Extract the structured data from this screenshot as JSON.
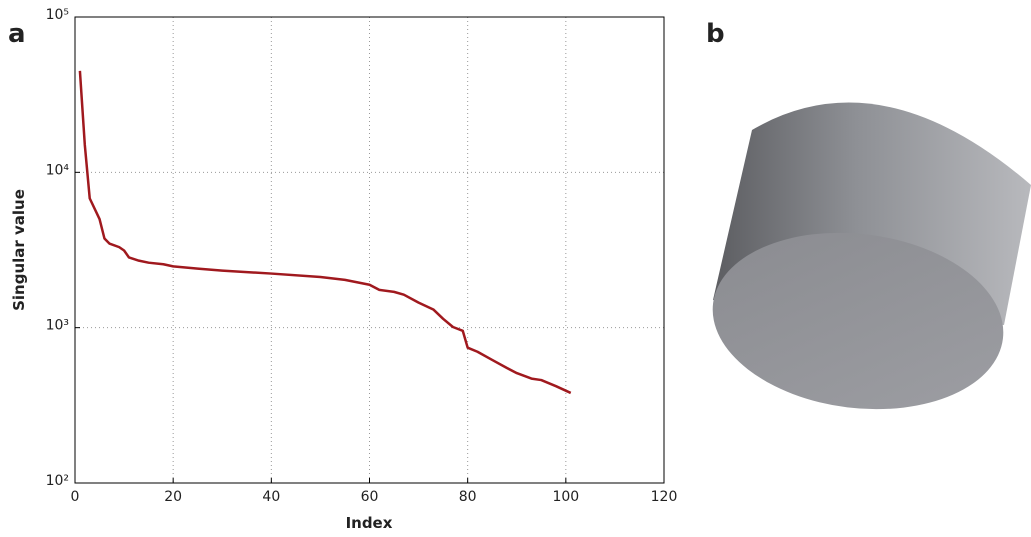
{
  "panel_labels": [
    "a",
    "b"
  ],
  "chart_data": {
    "type": "line",
    "xlabel": "Index",
    "ylabel": "Singular value",
    "log_y": true,
    "grid": true,
    "x": [
      1,
      2,
      3,
      5,
      6,
      7,
      9,
      10,
      11,
      13,
      15,
      18,
      20,
      25,
      30,
      40,
      50,
      55,
      60,
      62,
      65,
      67,
      70,
      73,
      75,
      77,
      79,
      80,
      82,
      85,
      88,
      90,
      93,
      95,
      98,
      101
    ],
    "series": [
      {
        "name": "Singular value",
        "color": "#a0191e",
        "values": [
          45000,
          15000,
          6800,
          5000,
          3750,
          3480,
          3300,
          3140,
          2830,
          2700,
          2620,
          2560,
          2480,
          2400,
          2330,
          2230,
          2120,
          2030,
          1890,
          1750,
          1700,
          1630,
          1450,
          1310,
          1140,
          1010,
          955,
          743,
          700,
          620,
          550,
          510,
          470,
          460,
          420,
          380
        ]
      }
    ],
    "xlim": [
      0,
      120
    ],
    "xticks": [
      0,
      20,
      40,
      60,
      80,
      100,
      120
    ],
    "ylim": [
      100,
      100000
    ],
    "yticks": [
      {
        "value": 100,
        "label": "10²"
      },
      {
        "value": 1000,
        "label": "10³"
      },
      {
        "value": 10000,
        "label": "10⁴"
      },
      {
        "value": 100000,
        "label": "10⁵"
      }
    ]
  }
}
